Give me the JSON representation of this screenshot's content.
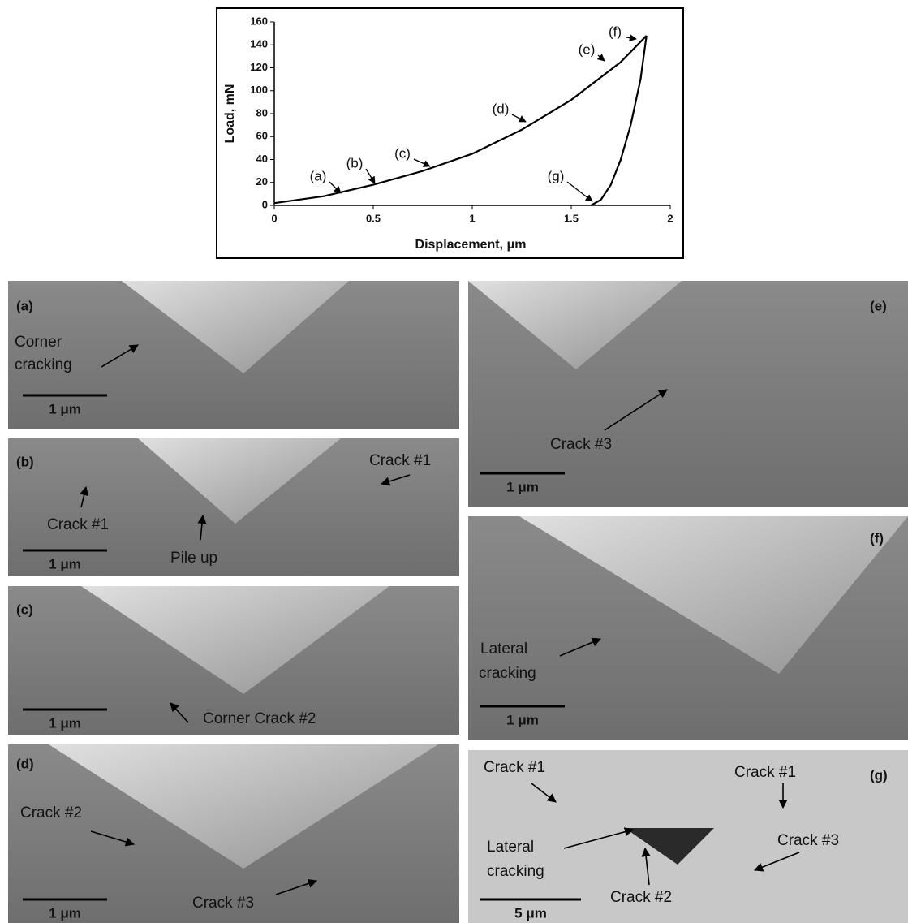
{
  "chart_data": {
    "type": "line",
    "x_label": "Displacement, μm",
    "y_label": "Load, mN",
    "xlim": [
      0,
      2
    ],
    "xticks": [
      0,
      0.5,
      1,
      1.5,
      2
    ],
    "ylim": [
      0,
      160
    ],
    "yticks": [
      0,
      20,
      40,
      60,
      80,
      100,
      120,
      140,
      160
    ],
    "series": [
      {
        "color": "#000000",
        "x": [
          0,
          0.25,
          0.5,
          0.75,
          1,
          1.25,
          1.5,
          1.75,
          1.88
        ],
        "values": [
          2,
          8,
          18,
          30,
          45,
          66,
          92,
          125,
          148
        ]
      },
      {
        "color": "#000000",
        "x": [
          1.88,
          1.85,
          1.8,
          1.75,
          1.7,
          1.65,
          1.6
        ],
        "values": [
          148,
          110,
          70,
          40,
          18,
          5,
          0
        ]
      }
    ],
    "annotations": [
      "(a)",
      "(b)",
      "(c)",
      "(d)",
      "(e)",
      "(f)",
      "(g)"
    ]
  },
  "panels": [
    {
      "label": "(a)",
      "notes": [
        "Corner",
        "cracking"
      ],
      "scale": "1 μm"
    },
    {
      "label": "(b)",
      "notes": [
        "Crack #1",
        "Pile up",
        "Crack #1"
      ],
      "scale": "1 μm"
    },
    {
      "label": "(c)",
      "notes": [
        "Corner Crack #2"
      ],
      "scale": "1 μm"
    },
    {
      "label": "(d)",
      "notes": [
        "Crack #2",
        "Crack #3"
      ],
      "scale": "1 μm"
    },
    {
      "label": "(e)",
      "notes": [
        "Crack #3"
      ],
      "scale": "1 μm"
    },
    {
      "label": "(f)",
      "notes": [
        "Lateral",
        "cracking"
      ],
      "scale": "1 μm"
    },
    {
      "label": "(g)",
      "notes": [
        "Crack #1",
        "Crack #1",
        "Lateral",
        "cracking",
        "Crack #3",
        "Crack #2"
      ],
      "scale": "5 μm"
    }
  ]
}
